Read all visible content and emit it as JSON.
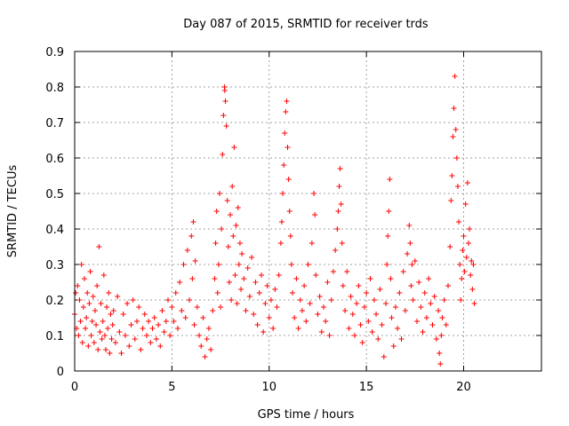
{
  "chart_data": {
    "type": "scatter",
    "title": "Day 087 of 2015, SRMTID for receiver trds",
    "xlabel": "GPS time / hours",
    "ylabel": "SRMTID / TECUs",
    "xlim": [
      0,
      24
    ],
    "ylim": [
      0,
      0.9
    ],
    "xticks": [
      0,
      5,
      10,
      15,
      20
    ],
    "xtick_labels": [
      "0",
      "5",
      "10",
      "15",
      "20"
    ],
    "yticks": [
      0,
      0.1,
      0.2,
      0.3,
      0.4,
      0.5,
      0.6,
      0.7,
      0.8,
      0.9
    ],
    "ytick_labels": [
      "0",
      "0.1",
      "0.2",
      "0.3",
      "0.4",
      "0.5",
      "0.6",
      "0.7",
      "0.8",
      "0.9"
    ],
    "grid": true,
    "marker": "+",
    "series": [
      {
        "name": "SRMTID",
        "color": "#ff0000",
        "points": [
          [
            0.0,
            0.16
          ],
          [
            0.05,
            0.22
          ],
          [
            0.1,
            0.12
          ],
          [
            0.15,
            0.24
          ],
          [
            0.2,
            0.1
          ],
          [
            0.25,
            0.2
          ],
          [
            0.3,
            0.14
          ],
          [
            0.35,
            0.3
          ],
          [
            0.4,
            0.08
          ],
          [
            0.45,
            0.18
          ],
          [
            0.5,
            0.26
          ],
          [
            0.55,
            0.12
          ],
          [
            0.6,
            0.15
          ],
          [
            0.65,
            0.22
          ],
          [
            0.7,
            0.07
          ],
          [
            0.75,
            0.19
          ],
          [
            0.8,
            0.28
          ],
          [
            0.85,
            0.1
          ],
          [
            0.9,
            0.14
          ],
          [
            0.95,
            0.21
          ],
          [
            1.0,
            0.08
          ],
          [
            1.05,
            0.17
          ],
          [
            1.1,
            0.13
          ],
          [
            1.15,
            0.24
          ],
          [
            1.2,
            0.06
          ],
          [
            1.25,
            0.35
          ],
          [
            1.3,
            0.11
          ],
          [
            1.35,
            0.19
          ],
          [
            1.4,
            0.09
          ],
          [
            1.45,
            0.14
          ],
          [
            1.5,
            0.27
          ],
          [
            1.55,
            0.1
          ],
          [
            1.6,
            0.06
          ],
          [
            1.65,
            0.18
          ],
          [
            1.7,
            0.12
          ],
          [
            1.75,
            0.22
          ],
          [
            1.8,
            0.05
          ],
          [
            1.85,
            0.16
          ],
          [
            1.9,
            0.09
          ],
          [
            1.95,
            0.13
          ],
          [
            2.0,
            0.17
          ],
          [
            2.1,
            0.08
          ],
          [
            2.2,
            0.21
          ],
          [
            2.3,
            0.11
          ],
          [
            2.4,
            0.05
          ],
          [
            2.5,
            0.16
          ],
          [
            2.6,
            0.1
          ],
          [
            2.7,
            0.19
          ],
          [
            2.8,
            0.07
          ],
          [
            2.9,
            0.13
          ],
          [
            3.0,
            0.2
          ],
          [
            3.1,
            0.09
          ],
          [
            3.2,
            0.14
          ],
          [
            3.3,
            0.18
          ],
          [
            3.4,
            0.06
          ],
          [
            3.5,
            0.12
          ],
          [
            3.6,
            0.16
          ],
          [
            3.7,
            0.1
          ],
          [
            3.8,
            0.14
          ],
          [
            3.9,
            0.08
          ],
          [
            4.0,
            0.12
          ],
          [
            4.1,
            0.15
          ],
          [
            4.2,
            0.09
          ],
          [
            4.3,
            0.13
          ],
          [
            4.4,
            0.07
          ],
          [
            4.5,
            0.17
          ],
          [
            4.6,
            0.11
          ],
          [
            4.7,
            0.14
          ],
          [
            4.8,
            0.2
          ],
          [
            4.9,
            0.1
          ],
          [
            5.0,
            0.18
          ],
          [
            5.1,
            0.14
          ],
          [
            5.2,
            0.22
          ],
          [
            5.3,
            0.12
          ],
          [
            5.4,
            0.25
          ],
          [
            5.5,
            0.17
          ],
          [
            5.6,
            0.3
          ],
          [
            5.7,
            0.15
          ],
          [
            5.8,
            0.34
          ],
          [
            5.9,
            0.2
          ],
          [
            6.0,
            0.38
          ],
          [
            6.05,
            0.26
          ],
          [
            6.1,
            0.42
          ],
          [
            6.15,
            0.13
          ],
          [
            6.2,
            0.31
          ],
          [
            6.3,
            0.18
          ],
          [
            6.4,
            0.1
          ],
          [
            6.5,
            0.07
          ],
          [
            6.6,
            0.15
          ],
          [
            6.7,
            0.04
          ],
          [
            6.8,
            0.09
          ],
          [
            6.9,
            0.12
          ],
          [
            7.0,
            0.06
          ],
          [
            7.1,
            0.17
          ],
          [
            7.2,
            0.26
          ],
          [
            7.25,
            0.36
          ],
          [
            7.3,
            0.45
          ],
          [
            7.35,
            0.22
          ],
          [
            7.4,
            0.3
          ],
          [
            7.45,
            0.5
          ],
          [
            7.5,
            0.18
          ],
          [
            7.55,
            0.4
          ],
          [
            7.6,
            0.61
          ],
          [
            7.65,
            0.72
          ],
          [
            7.7,
            0.8
          ],
          [
            7.72,
            0.79
          ],
          [
            7.75,
            0.76
          ],
          [
            7.8,
            0.69
          ],
          [
            7.85,
            0.48
          ],
          [
            7.9,
            0.35
          ],
          [
            7.95,
            0.25
          ],
          [
            8.0,
            0.44
          ],
          [
            8.05,
            0.2
          ],
          [
            8.1,
            0.52
          ],
          [
            8.15,
            0.38
          ],
          [
            8.2,
            0.63
          ],
          [
            8.25,
            0.27
          ],
          [
            8.3,
            0.41
          ],
          [
            8.35,
            0.19
          ],
          [
            8.4,
            0.46
          ],
          [
            8.45,
            0.3
          ],
          [
            8.5,
            0.36
          ],
          [
            8.55,
            0.23
          ],
          [
            8.6,
            0.33
          ],
          [
            8.7,
            0.26
          ],
          [
            8.8,
            0.17
          ],
          [
            8.9,
            0.29
          ],
          [
            9.0,
            0.21
          ],
          [
            9.1,
            0.32
          ],
          [
            9.2,
            0.16
          ],
          [
            9.3,
            0.25
          ],
          [
            9.4,
            0.13
          ],
          [
            9.5,
            0.22
          ],
          [
            9.6,
            0.27
          ],
          [
            9.7,
            0.11
          ],
          [
            9.8,
            0.19
          ],
          [
            9.9,
            0.24
          ],
          [
            10.0,
            0.15
          ],
          [
            10.1,
            0.2
          ],
          [
            10.2,
            0.12
          ],
          [
            10.3,
            0.23
          ],
          [
            10.4,
            0.18
          ],
          [
            10.5,
            0.27
          ],
          [
            10.6,
            0.36
          ],
          [
            10.65,
            0.42
          ],
          [
            10.7,
            0.5
          ],
          [
            10.75,
            0.58
          ],
          [
            10.8,
            0.67
          ],
          [
            10.85,
            0.73
          ],
          [
            10.9,
            0.76
          ],
          [
            10.95,
            0.63
          ],
          [
            11.0,
            0.54
          ],
          [
            11.05,
            0.45
          ],
          [
            11.1,
            0.38
          ],
          [
            11.15,
            0.3
          ],
          [
            11.2,
            0.22
          ],
          [
            11.3,
            0.15
          ],
          [
            11.4,
            0.26
          ],
          [
            11.5,
            0.12
          ],
          [
            11.6,
            0.2
          ],
          [
            11.7,
            0.17
          ],
          [
            11.8,
            0.24
          ],
          [
            11.9,
            0.14
          ],
          [
            12.0,
            0.3
          ],
          [
            12.1,
            0.19
          ],
          [
            12.2,
            0.36
          ],
          [
            12.3,
            0.5
          ],
          [
            12.35,
            0.44
          ],
          [
            12.4,
            0.27
          ],
          [
            12.5,
            0.16
          ],
          [
            12.6,
            0.21
          ],
          [
            12.7,
            0.11
          ],
          [
            12.8,
            0.18
          ],
          [
            12.9,
            0.14
          ],
          [
            13.0,
            0.25
          ],
          [
            13.1,
            0.1
          ],
          [
            13.2,
            0.2
          ],
          [
            13.3,
            0.28
          ],
          [
            13.4,
            0.34
          ],
          [
            13.5,
            0.4
          ],
          [
            13.55,
            0.45
          ],
          [
            13.6,
            0.52
          ],
          [
            13.65,
            0.57
          ],
          [
            13.7,
            0.47
          ],
          [
            13.75,
            0.36
          ],
          [
            13.8,
            0.24
          ],
          [
            13.9,
            0.17
          ],
          [
            14.0,
            0.28
          ],
          [
            14.1,
            0.12
          ],
          [
            14.2,
            0.21
          ],
          [
            14.3,
            0.16
          ],
          [
            14.4,
            0.1
          ],
          [
            14.5,
            0.19
          ],
          [
            14.6,
            0.24
          ],
          [
            14.7,
            0.13
          ],
          [
            14.8,
            0.08
          ],
          [
            14.9,
            0.18
          ],
          [
            15.0,
            0.22
          ],
          [
            15.1,
            0.14
          ],
          [
            15.2,
            0.26
          ],
          [
            15.3,
            0.11
          ],
          [
            15.4,
            0.2
          ],
          [
            15.5,
            0.16
          ],
          [
            15.6,
            0.09
          ],
          [
            15.7,
            0.23
          ],
          [
            15.8,
            0.13
          ],
          [
            15.9,
            0.04
          ],
          [
            16.0,
            0.19
          ],
          [
            16.05,
            0.3
          ],
          [
            16.1,
            0.38
          ],
          [
            16.15,
            0.45
          ],
          [
            16.2,
            0.54
          ],
          [
            16.25,
            0.26
          ],
          [
            16.3,
            0.15
          ],
          [
            16.4,
            0.07
          ],
          [
            16.5,
            0.18
          ],
          [
            16.6,
            0.12
          ],
          [
            16.7,
            0.22
          ],
          [
            16.8,
            0.09
          ],
          [
            16.9,
            0.28
          ],
          [
            17.0,
            0.17
          ],
          [
            17.1,
            0.33
          ],
          [
            17.2,
            0.41
          ],
          [
            17.25,
            0.36
          ],
          [
            17.3,
            0.24
          ],
          [
            17.35,
            0.3
          ],
          [
            17.4,
            0.2
          ],
          [
            17.5,
            0.31
          ],
          [
            17.6,
            0.14
          ],
          [
            17.7,
            0.25
          ],
          [
            17.8,
            0.18
          ],
          [
            17.9,
            0.11
          ],
          [
            18.0,
            0.22
          ],
          [
            18.1,
            0.15
          ],
          [
            18.2,
            0.26
          ],
          [
            18.3,
            0.19
          ],
          [
            18.4,
            0.13
          ],
          [
            18.5,
            0.21
          ],
          [
            18.6,
            0.09
          ],
          [
            18.7,
            0.17
          ],
          [
            18.75,
            0.05
          ],
          [
            18.8,
            0.02
          ],
          [
            18.85,
            0.1
          ],
          [
            18.9,
            0.15
          ],
          [
            19.0,
            0.2
          ],
          [
            19.1,
            0.13
          ],
          [
            19.2,
            0.24
          ],
          [
            19.3,
            0.35
          ],
          [
            19.35,
            0.48
          ],
          [
            19.4,
            0.55
          ],
          [
            19.45,
            0.66
          ],
          [
            19.5,
            0.74
          ],
          [
            19.55,
            0.83
          ],
          [
            19.6,
            0.68
          ],
          [
            19.65,
            0.6
          ],
          [
            19.7,
            0.52
          ],
          [
            19.75,
            0.42
          ],
          [
            19.8,
            0.3
          ],
          [
            19.85,
            0.2
          ],
          [
            19.9,
            0.26
          ],
          [
            19.95,
            0.34
          ],
          [
            20.0,
            0.38
          ],
          [
            20.05,
            0.28
          ],
          [
            20.1,
            0.47
          ],
          [
            20.15,
            0.32
          ],
          [
            20.2,
            0.53
          ],
          [
            20.25,
            0.36
          ],
          [
            20.3,
            0.4
          ],
          [
            20.35,
            0.27
          ],
          [
            20.4,
            0.31
          ],
          [
            20.45,
            0.23
          ],
          [
            20.5,
            0.3
          ],
          [
            20.55,
            0.19
          ]
        ]
      }
    ]
  }
}
